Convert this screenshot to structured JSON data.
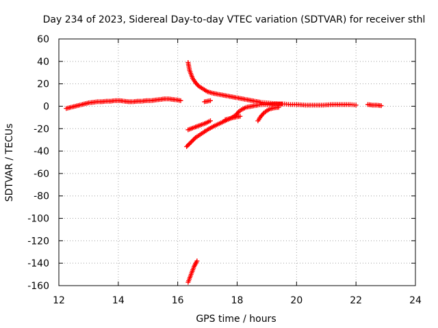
{
  "chart_data": {
    "type": "scatter",
    "title": "Day 234 of 2023, Sidereal Day-to-day VTEC variation (SDTVAR) for receiver sthl",
    "xlabel": "GPS time / hours",
    "ylabel": "SDTVAR / TECUs",
    "xlim": [
      12,
      24
    ],
    "ylim": [
      -160,
      60
    ],
    "xticks": [
      12,
      14,
      16,
      18,
      20,
      22,
      24
    ],
    "yticks": [
      60,
      40,
      20,
      0,
      -20,
      -40,
      -60,
      -80,
      -100,
      -120,
      -140,
      -160
    ],
    "grid": true,
    "marker": "plus",
    "color": "#ff0000",
    "series": [
      {
        "x": [
          12.25,
          12.4,
          12.55,
          12.7,
          12.85,
          13.0,
          13.15,
          13.3,
          13.45,
          13.6,
          13.75,
          13.9,
          14.05,
          14.2,
          14.35,
          14.5,
          14.65,
          14.8,
          14.95,
          15.1,
          15.25,
          15.4,
          15.55,
          15.7,
          15.85,
          16.0,
          16.1
        ],
        "y": [
          -2,
          -1,
          0,
          1,
          2,
          3,
          3.5,
          4,
          4,
          4.5,
          4.5,
          5,
          5,
          4.5,
          4,
          4,
          4.5,
          4.5,
          5,
          5,
          5.5,
          6,
          6.5,
          6.5,
          6,
          5.5,
          5
        ]
      },
      {
        "x": [
          16.35,
          16.4,
          16.5,
          16.6,
          16.7,
          16.85,
          17.0,
          17.2,
          17.4,
          17.6,
          17.8,
          18.0,
          18.2,
          18.4,
          18.6,
          18.8,
          19.0,
          19.2,
          19.4,
          19.6,
          19.8,
          20.0,
          20.3,
          20.6,
          20.9,
          21.2,
          21.5,
          21.8,
          22.0
        ],
        "y": [
          39,
          32,
          25,
          21,
          18,
          15.5,
          13,
          11.5,
          10.5,
          9.5,
          8.5,
          7.5,
          6.5,
          5.5,
          4.5,
          3.5,
          3,
          2.5,
          2,
          2,
          1.5,
          1.5,
          1,
          1,
          1,
          1.5,
          1.5,
          1.5,
          1
        ]
      },
      {
        "x": [
          16.9,
          17.0,
          17.1
        ],
        "y": [
          4,
          4.5,
          5
        ]
      },
      {
        "x": [
          16.35,
          16.5,
          16.65,
          16.8,
          16.95,
          17.1
        ],
        "y": [
          -21,
          -19.5,
          -18,
          -16.5,
          -15,
          -13
        ]
      },
      {
        "x": [
          17.6,
          17.75,
          17.9,
          18.1
        ],
        "y": [
          -12,
          -11,
          -10,
          -9
        ]
      },
      {
        "x": [
          16.3,
          16.45,
          16.6,
          16.8,
          17.0,
          17.2,
          17.4,
          17.6,
          17.8,
          17.95,
          18.05,
          18.15,
          18.3,
          18.5,
          18.7,
          18.9,
          19.1,
          19.3,
          19.5
        ],
        "y": [
          -36,
          -32,
          -28,
          -24.5,
          -21,
          -18,
          -15.5,
          -13,
          -10.5,
          -8,
          -5,
          -3,
          -1,
          0,
          1,
          1.5,
          1.5,
          2,
          2
        ]
      },
      {
        "x": [
          18.7,
          18.8,
          18.9,
          19.0,
          19.1,
          19.25,
          19.4
        ],
        "y": [
          -13,
          -9,
          -6,
          -4,
          -2.5,
          -1.5,
          -1
        ]
      },
      {
        "x": [
          16.35,
          16.45,
          16.55,
          16.65
        ],
        "y": [
          -157,
          -150,
          -143,
          -138
        ]
      },
      {
        "x": [
          22.4,
          22.55,
          22.7,
          22.85
        ],
        "y": [
          1.5,
          1,
          1,
          0.5
        ]
      }
    ]
  }
}
